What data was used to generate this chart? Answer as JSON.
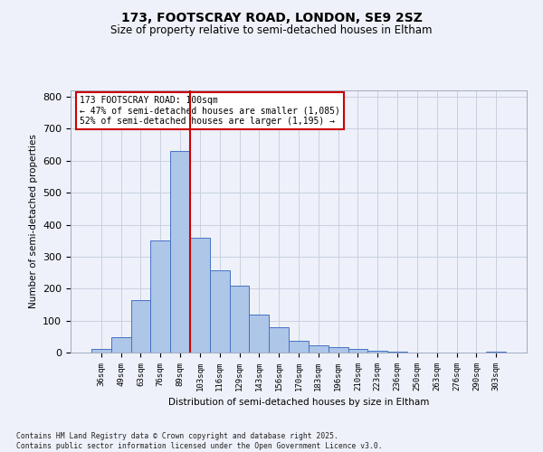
{
  "title1": "173, FOOTSCRAY ROAD, LONDON, SE9 2SZ",
  "title2": "Size of property relative to semi-detached houses in Eltham",
  "xlabel": "Distribution of semi-detached houses by size in Eltham",
  "ylabel": "Number of semi-detached properties",
  "categories": [
    "36sqm",
    "49sqm",
    "63sqm",
    "76sqm",
    "89sqm",
    "103sqm",
    "116sqm",
    "129sqm",
    "143sqm",
    "156sqm",
    "170sqm",
    "183sqm",
    "196sqm",
    "210sqm",
    "223sqm",
    "236sqm",
    "250sqm",
    "263sqm",
    "276sqm",
    "290sqm",
    "303sqm"
  ],
  "values": [
    10,
    48,
    165,
    350,
    630,
    360,
    258,
    210,
    120,
    80,
    37,
    22,
    16,
    10,
    5,
    3,
    1,
    1,
    0,
    0,
    3
  ],
  "bar_color": "#aec6e8",
  "bar_edge_color": "#4472c4",
  "vline_color": "#cc0000",
  "annotation_text": "173 FOOTSCRAY ROAD: 100sqm\n← 47% of semi-detached houses are smaller (1,085)\n52% of semi-detached houses are larger (1,195) →",
  "annotation_box_color": "#cc0000",
  "ylim": [
    0,
    820
  ],
  "yticks": [
    0,
    100,
    200,
    300,
    400,
    500,
    600,
    700,
    800
  ],
  "footer": "Contains HM Land Registry data © Crown copyright and database right 2025.\nContains public sector information licensed under the Open Government Licence v3.0.",
  "bg_color": "#eef1f9",
  "grid_color": "#c8d0e0"
}
